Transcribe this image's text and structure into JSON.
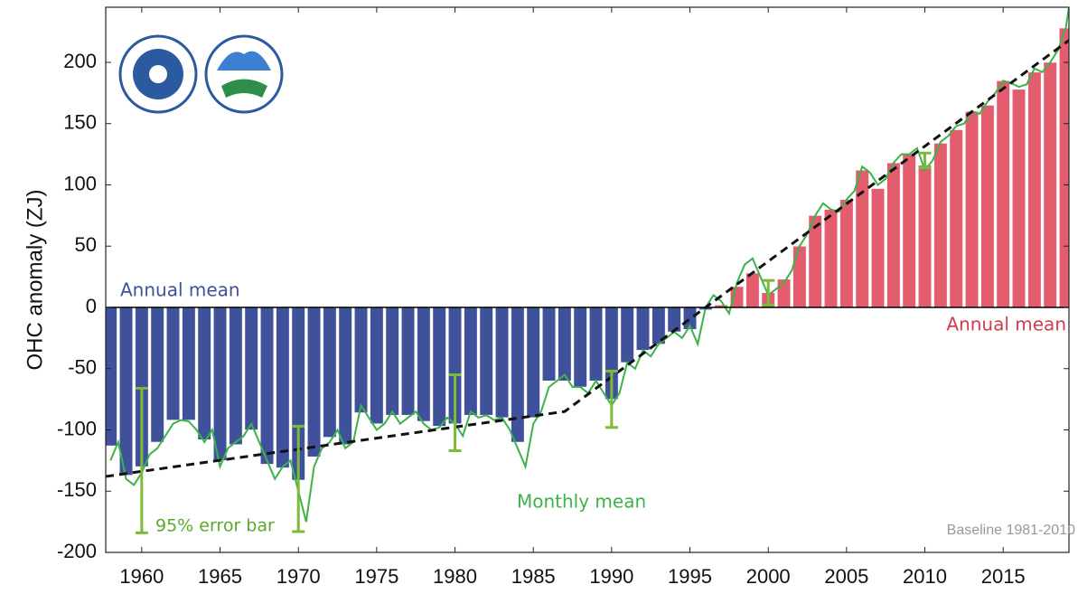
{
  "chart_data": {
    "type": "bar",
    "y_label": "OHC anomaly (ZJ)",
    "categories": [
      1958,
      1959,
      1960,
      1961,
      1962,
      1963,
      1964,
      1965,
      1966,
      1967,
      1968,
      1969,
      1970,
      1971,
      1972,
      1973,
      1974,
      1975,
      1976,
      1977,
      1978,
      1979,
      1980,
      1981,
      1982,
      1983,
      1984,
      1985,
      1986,
      1987,
      1988,
      1989,
      1990,
      1991,
      1992,
      1993,
      1994,
      1995,
      1996,
      1997,
      1998,
      1999,
      2000,
      2001,
      2002,
      2003,
      2004,
      2005,
      2006,
      2007,
      2008,
      2009,
      2010,
      2011,
      2012,
      2013,
      2014,
      2015,
      2016,
      2017,
      2018,
      2019
    ],
    "values": [
      -113,
      -137,
      -130,
      -110,
      -92,
      -92,
      -108,
      -125,
      -112,
      -100,
      -128,
      -131,
      -141,
      -122,
      -106,
      -112,
      -86,
      -95,
      -88,
      -88,
      -93,
      -97,
      -95,
      -88,
      -88,
      -90,
      -110,
      -90,
      -60,
      -60,
      -65,
      -60,
      -75,
      -45,
      -35,
      -30,
      -20,
      -18,
      -2,
      2,
      17,
      28,
      12,
      23,
      50,
      75,
      80,
      88,
      112,
      97,
      118,
      125,
      116,
      134,
      145,
      160,
      165,
      185,
      178,
      192,
      200,
      228
    ],
    "negative_color": "#3f519b",
    "positive_color": "#e35d6f",
    "monthly": {
      "color": "#3cb34a",
      "x": [
        1958,
        1958.5,
        1959,
        1959.5,
        1960,
        1960.5,
        1961,
        1961.5,
        1962,
        1962.5,
        1963,
        1963.5,
        1964,
        1964.5,
        1965,
        1965.5,
        1966,
        1966.5,
        1967,
        1967.5,
        1968,
        1968.5,
        1969,
        1969.5,
        1970,
        1970.5,
        1971,
        1971.5,
        1972,
        1972.5,
        1973,
        1973.5,
        1974,
        1974.5,
        1975,
        1975.5,
        1976,
        1976.5,
        1977,
        1977.5,
        1978,
        1978.5,
        1979,
        1979.5,
        1980,
        1980.5,
        1981,
        1981.5,
        1982,
        1982.5,
        1983,
        1983.5,
        1984,
        1984.5,
        1985,
        1985.5,
        1986,
        1986.5,
        1987,
        1987.5,
        1988,
        1988.5,
        1989,
        1989.5,
        1990,
        1990.5,
        1991,
        1991.5,
        1992,
        1992.5,
        1993,
        1993.5,
        1994,
        1994.5,
        1995,
        1995.5,
        1996,
        1996.5,
        1997,
        1997.5,
        1998,
        1998.5,
        1999,
        1999.5,
        2000,
        2000.5,
        2001,
        2001.5,
        2002,
        2002.5,
        2003,
        2003.5,
        2004,
        2004.5,
        2005,
        2005.5,
        2006,
        2006.5,
        2007,
        2007.5,
        2008,
        2008.5,
        2009,
        2009.5,
        2010,
        2010.5,
        2011,
        2011.5,
        2012,
        2012.5,
        2013,
        2013.5,
        2014,
        2014.5,
        2015,
        2015.5,
        2016,
        2016.5,
        2017,
        2017.5,
        2018,
        2018.5,
        2019,
        2019.2
      ],
      "values": [
        -125,
        -110,
        -140,
        -145,
        -135,
        -120,
        -115,
        -105,
        -95,
        -92,
        -93,
        -100,
        -110,
        -100,
        -130,
        -115,
        -110,
        -105,
        -95,
        -110,
        -125,
        -140,
        -130,
        -125,
        -150,
        -175,
        -130,
        -115,
        -110,
        -100,
        -115,
        -110,
        -80,
        -90,
        -100,
        -95,
        -85,
        -95,
        -90,
        -85,
        -95,
        -100,
        -98,
        -90,
        -95,
        -105,
        -85,
        -90,
        -88,
        -92,
        -90,
        -100,
        -115,
        -130,
        -95,
        -85,
        -65,
        -60,
        -55,
        -65,
        -65,
        -70,
        -60,
        -70,
        -80,
        -70,
        -45,
        -50,
        -35,
        -40,
        -30,
        -25,
        -20,
        -25,
        -15,
        -30,
        0,
        10,
        5,
        -5,
        20,
        35,
        40,
        25,
        10,
        15,
        20,
        30,
        50,
        60,
        75,
        85,
        80,
        78,
        88,
        95,
        115,
        110,
        100,
        105,
        118,
        125,
        125,
        130,
        112,
        120,
        135,
        140,
        148,
        150,
        160,
        158,
        168,
        175,
        185,
        183,
        180,
        182,
        195,
        192,
        200,
        210,
        228,
        245
      ]
    },
    "trend": {
      "color": "#111111",
      "x": [
        1957.7,
        1987,
        1996,
        2019.2
      ],
      "values": [
        -138,
        -85,
        0,
        218
      ]
    },
    "error_bars": {
      "color": "#7cbb3a",
      "x": [
        1960,
        1970,
        1980,
        1990,
        2000,
        2010
      ],
      "values": [
        -125,
        -140,
        -86,
        -75,
        12,
        120
      ],
      "errors": [
        59,
        43,
        31,
        23,
        10,
        6
      ]
    },
    "annotations": [
      {
        "text": "Annual mean",
        "color": "#3f519b"
      },
      {
        "text": "Annual mean",
        "color": "#d43a50"
      },
      {
        "text": "Monthly mean",
        "color": "#3cb34a"
      },
      {
        "text": "95% error bar",
        "color": "#5aaa2a"
      },
      {
        "text": "Baseline 1981-2010",
        "color": "#999999"
      }
    ],
    "xlim": [
      1957.7,
      2019.2
    ],
    "ylim": [
      -200,
      245
    ],
    "xticks": [
      1960,
      1965,
      1970,
      1975,
      1980,
      1985,
      1990,
      1995,
      2000,
      2005,
      2010,
      2015
    ],
    "yticks": [
      -200,
      -150,
      -100,
      -50,
      0,
      50,
      100,
      150,
      200
    ]
  }
}
